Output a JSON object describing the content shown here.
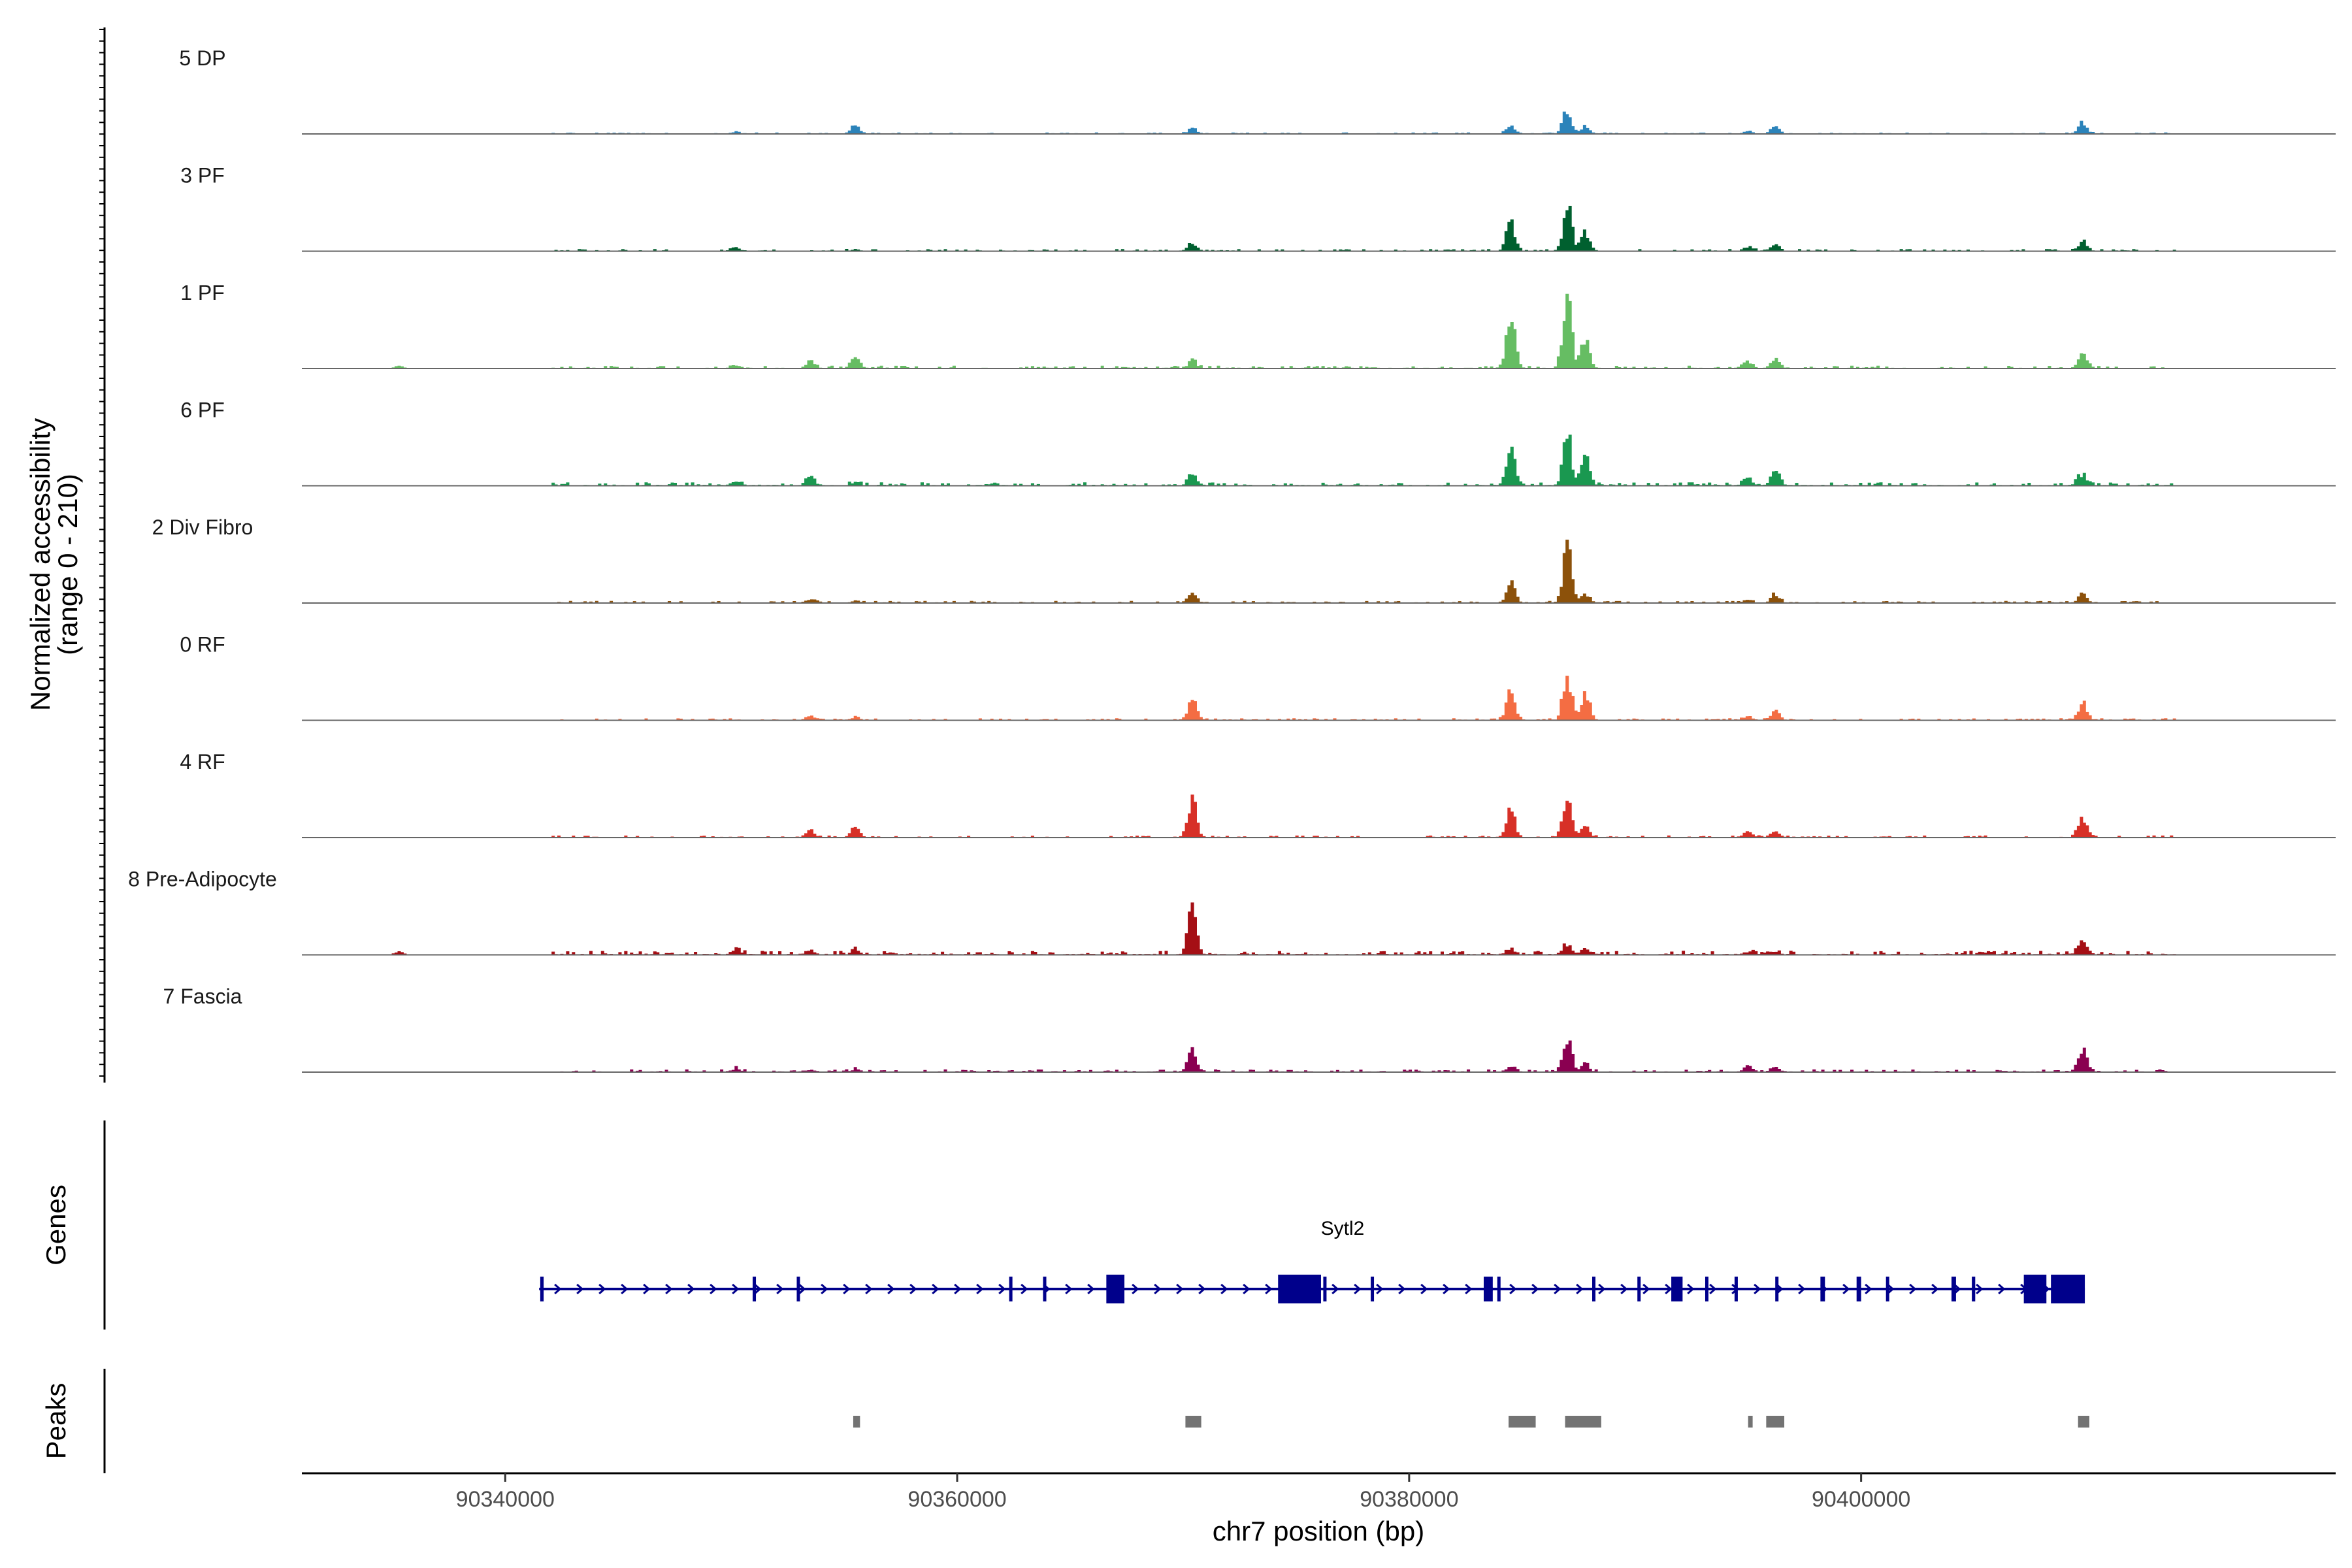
{
  "chart_data": {
    "type": "coverage_tracks",
    "region": {
      "chrom": "chr7",
      "start": 90331000,
      "end": 90421000
    },
    "y_axis_title_line1": "Normalized accessibility",
    "y_axis_title_line2": "(range 0 - 210)",
    "y_range": [
      0,
      210
    ],
    "x_axis_title": "chr7 position (bp)",
    "x_ticks": [
      {
        "value": 90340000,
        "label": "90340000"
      },
      {
        "value": 90360000,
        "label": "90360000"
      },
      {
        "value": 90380000,
        "label": "90380000"
      },
      {
        "value": 90400000,
        "label": "90400000"
      }
    ],
    "coverage_peak_positions": [
      90335300,
      90350200,
      90353500,
      90355500,
      90370400,
      90384500,
      90387000,
      90387800,
      90395000,
      90396200,
      90409800
    ],
    "tracks": [
      {
        "label": "5 DP",
        "color": "#2b83ba",
        "noise": 2,
        "peaks": [
          90350200,
          6,
          90355500,
          28,
          90370400,
          18,
          90384500,
          28,
          90387000,
          95,
          90387800,
          25,
          90395000,
          8,
          90396200,
          28,
          90409800,
          45
        ]
      },
      {
        "label": "3 PF",
        "color": "#00602f",
        "noise": 3,
        "peaks": [
          90350200,
          12,
          90355500,
          5,
          90370400,
          22,
          90384500,
          110,
          90387000,
          160,
          90387800,
          70,
          90395000,
          15,
          90396200,
          22,
          90409800,
          35
        ]
      },
      {
        "label": "1 PF",
        "color": "#66bd63",
        "noise": 4,
        "peaks": [
          90335300,
          10,
          90350200,
          12,
          90353500,
          25,
          90355500,
          38,
          90370400,
          28,
          90384500,
          182,
          90387000,
          265,
          90387800,
          110,
          90395000,
          25,
          90396200,
          35,
          90409800,
          50
        ]
      },
      {
        "label": "6 PF",
        "color": "#1a9850",
        "noise": 5,
        "peaks": [
          90350200,
          14,
          90353500,
          35,
          90355500,
          12,
          90370400,
          42,
          90384500,
          135,
          90387000,
          185,
          90387800,
          90,
          90395000,
          22,
          90396200,
          55,
          90409800,
          42
        ]
      },
      {
        "label": "2 Div Fibro",
        "color": "#8c510a",
        "noise": 3,
        "peaks": [
          90353500,
          10,
          90355500,
          6,
          90370400,
          30,
          90384500,
          65,
          90387000,
          185,
          90387800,
          35,
          90395000,
          10,
          90396200,
          30,
          90409800,
          30
        ]
      },
      {
        "label": "0 RF",
        "color": "#f46d43",
        "noise": 3,
        "peaks": [
          90353500,
          18,
          90355500,
          10,
          90370400,
          80,
          90384500,
          120,
          90387000,
          165,
          90387800,
          100,
          90395000,
          10,
          90396200,
          30,
          90409800,
          65
        ]
      },
      {
        "label": "4 RF",
        "color": "#d73027",
        "noise": 3,
        "peaks": [
          90353500,
          25,
          90355500,
          35,
          90370400,
          140,
          90384500,
          95,
          90387000,
          158,
          90387800,
          35,
          90395000,
          20,
          90396200,
          25,
          90409800,
          65
        ]
      },
      {
        "label": "8 Pre-Adipocyte",
        "color": "#a50f15",
        "noise": 6,
        "peaks": [
          90335300,
          12,
          90350200,
          20,
          90353500,
          15,
          90355500,
          15,
          90370400,
          172,
          90384500,
          15,
          90387000,
          35,
          90387800,
          20,
          90395000,
          10,
          90396200,
          10,
          90409800,
          60
        ]
      },
      {
        "label": "7 Fascia",
        "color": "#8a0051",
        "noise": 4,
        "peaks": [
          90350200,
          10,
          90353500,
          8,
          90355500,
          8,
          90370400,
          65,
          90384500,
          18,
          90387000,
          130,
          90387800,
          25,
          90395000,
          22,
          90396200,
          18,
          90409800,
          82
        ]
      }
    ],
    "genes_panel": {
      "title": "Genes",
      "gene": {
        "name": "Sytl2",
        "color": "#00008b",
        "strand": "+",
        "start": 90341500,
        "end": 90409900,
        "exons": [
          [
            90341550,
            90341700
          ],
          [
            90350950,
            90351050
          ],
          [
            90352900,
            90353000
          ],
          [
            90362300,
            90362400
          ],
          [
            90363800,
            90363870
          ],
          [
            90366600,
            90367400
          ],
          [
            90374200,
            90376100
          ],
          [
            90376200,
            90376300
          ],
          [
            90378300,
            90378380
          ],
          [
            90383300,
            90383700
          ],
          [
            90383900,
            90384000
          ],
          [
            90388100,
            90388200
          ],
          [
            90390100,
            90390200
          ],
          [
            90391600,
            90392100
          ],
          [
            90393100,
            90393180
          ],
          [
            90394400,
            90394500
          ],
          [
            90396200,
            90396280
          ],
          [
            90398200,
            90398400
          ],
          [
            90399800,
            90400000
          ],
          [
            90401100,
            90401200
          ],
          [
            90404000,
            90404200
          ],
          [
            90404900,
            90405050
          ],
          [
            90407200,
            90408200
          ],
          [
            90408400,
            90409900
          ]
        ]
      }
    },
    "peaks_panel": {
      "title": "Peaks",
      "color": "#737373",
      "regions": [
        [
          90355400,
          90355700
        ],
        [
          90370100,
          90370800
        ],
        [
          90384400,
          90385600
        ],
        [
          90386900,
          90388500
        ],
        [
          90395000,
          90395200
        ],
        [
          90395800,
          90396600
        ],
        [
          90409600,
          90410100
        ]
      ]
    }
  }
}
